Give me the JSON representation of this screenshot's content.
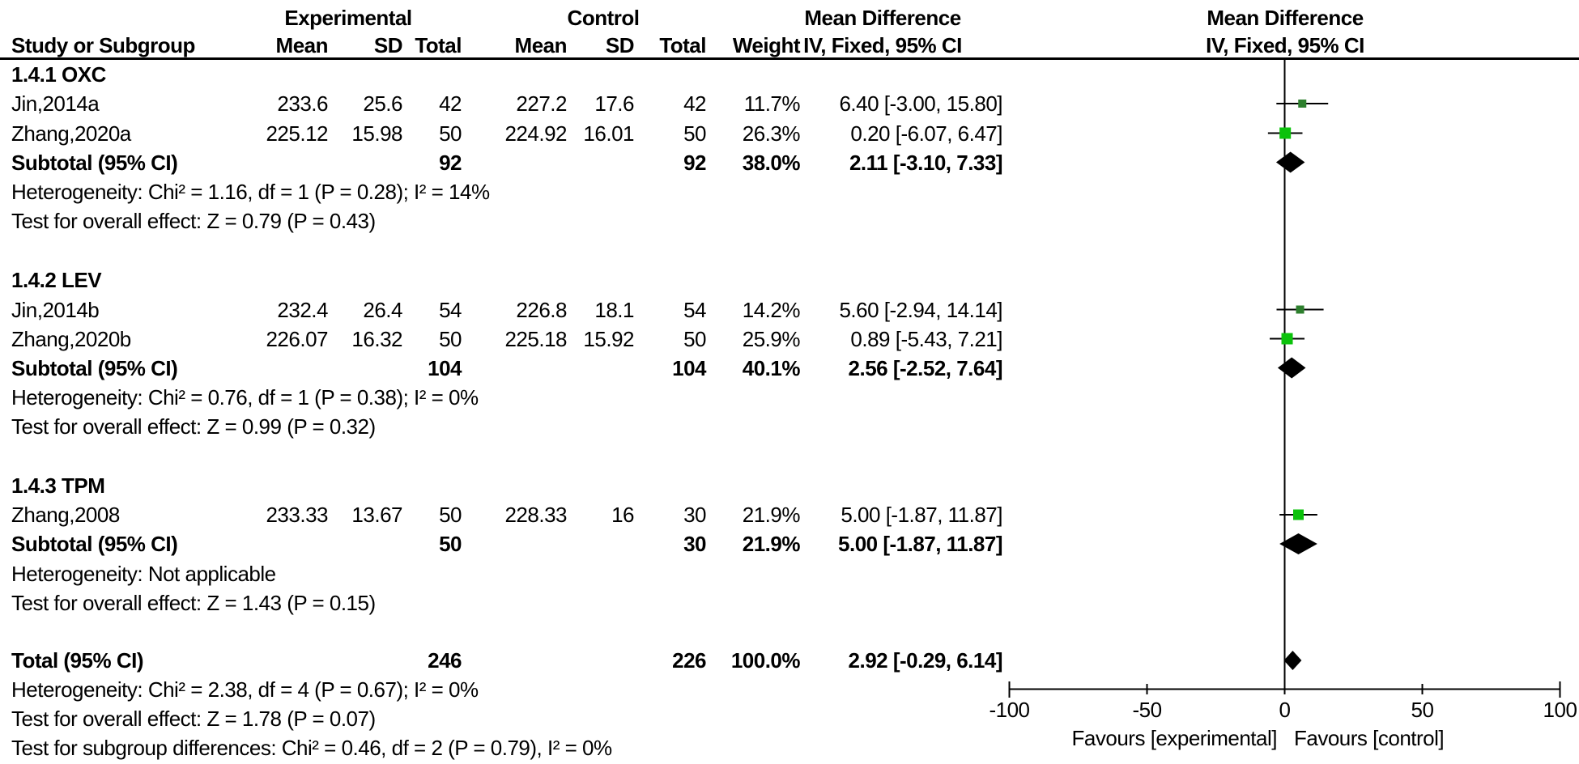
{
  "header": {
    "study": "Study or Subgroup",
    "experimental": "Experimental",
    "control": "Control",
    "mean_difference_left": "Mean Difference",
    "mean_difference_right": "Mean Difference",
    "mean": "Mean",
    "sd": "SD",
    "total": "Total",
    "weight": "Weight",
    "method_left": "IV, Fixed, 95% CI",
    "method_right": "IV, Fixed, 95% CI"
  },
  "colors": {
    "square_small": "#2d7f2d",
    "square_large": "#0bc20b",
    "diamond": "#000000",
    "line": "#000000",
    "text": "#000000",
    "background": "#ffffff"
  },
  "chart_data": {
    "type": "forest",
    "effect_measure": "Mean Difference",
    "method": "IV, Fixed, 95% CI",
    "x_axis": {
      "min": -100,
      "max": 100,
      "ticks": [
        -100,
        -50,
        0,
        50,
        100
      ],
      "tick_labels": [
        "-100",
        "-50",
        "0",
        "50",
        "100"
      ],
      "favours_left": "Favours [experimental]",
      "favours_right": "Favours [control]"
    },
    "sections": [
      {
        "label": "1.4.1 OXC",
        "studies": [
          {
            "study": "Jin,2014a",
            "exp_mean": "233.6",
            "exp_sd": "25.6",
            "exp_total": "42",
            "ctl_mean": "227.2",
            "ctl_sd": "17.6",
            "ctl_total": "42",
            "weight": "11.7%",
            "ci_text": "6.40 [-3.00, 15.80]",
            "md": 6.4,
            "ci_low": -3.0,
            "ci_high": 15.8,
            "marker_size": 10,
            "marker_color": "#2d7f2d"
          },
          {
            "study": "Zhang,2020a",
            "exp_mean": "225.12",
            "exp_sd": "15.98",
            "exp_total": "50",
            "ctl_mean": "224.92",
            "ctl_sd": "16.01",
            "ctl_total": "50",
            "weight": "26.3%",
            "ci_text": "0.20 [-6.07, 6.47]",
            "md": 0.2,
            "ci_low": -6.07,
            "ci_high": 6.47,
            "marker_size": 14,
            "marker_color": "#0bc20b"
          }
        ],
        "subtotal": {
          "label": "Subtotal (95% CI)",
          "exp_total": "92",
          "ctl_total": "92",
          "weight": "38.0%",
          "ci_text": "2.11 [-3.10, 7.33]",
          "md": 2.11,
          "ci_low": -3.1,
          "ci_high": 7.33
        },
        "heterogeneity": "Heterogeneity: Chi² = 1.16, df = 1 (P = 0.28); I² = 14%",
        "overall_effect": "Test for overall effect: Z = 0.79 (P = 0.43)"
      },
      {
        "label": "1.4.2 LEV",
        "studies": [
          {
            "study": "Jin,2014b",
            "exp_mean": "232.4",
            "exp_sd": "26.4",
            "exp_total": "54",
            "ctl_mean": "226.8",
            "ctl_sd": "18.1",
            "ctl_total": "54",
            "weight": "14.2%",
            "ci_text": "5.60 [-2.94, 14.14]",
            "md": 5.6,
            "ci_low": -2.94,
            "ci_high": 14.14,
            "marker_size": 10,
            "marker_color": "#2d7f2d"
          },
          {
            "study": "Zhang,2020b",
            "exp_mean": "226.07",
            "exp_sd": "16.32",
            "exp_total": "50",
            "ctl_mean": "225.18",
            "ctl_sd": "15.92",
            "ctl_total": "50",
            "weight": "25.9%",
            "ci_text": "0.89 [-5.43, 7.21]",
            "md": 0.89,
            "ci_low": -5.43,
            "ci_high": 7.21,
            "marker_size": 14,
            "marker_color": "#0bc20b"
          }
        ],
        "subtotal": {
          "label": "Subtotal (95% CI)",
          "exp_total": "104",
          "ctl_total": "104",
          "weight": "40.1%",
          "ci_text": "2.56 [-2.52, 7.64]",
          "md": 2.56,
          "ci_low": -2.52,
          "ci_high": 7.64
        },
        "heterogeneity": "Heterogeneity: Chi² = 0.76, df = 1 (P = 0.38); I² = 0%",
        "overall_effect": "Test for overall effect: Z = 0.99 (P = 0.32)"
      },
      {
        "label": "1.4.3 TPM",
        "studies": [
          {
            "study": "Zhang,2008",
            "exp_mean": "233.33",
            "exp_sd": "13.67",
            "exp_total": "50",
            "ctl_mean": "228.33",
            "ctl_sd": "16",
            "ctl_total": "30",
            "weight": "21.9%",
            "ci_text": "5.00 [-1.87, 11.87]",
            "md": 5.0,
            "ci_low": -1.87,
            "ci_high": 11.87,
            "marker_size": 13,
            "marker_color": "#0bc20b"
          }
        ],
        "subtotal": {
          "label": "Subtotal (95% CI)",
          "exp_total": "50",
          "ctl_total": "30",
          "weight": "21.9%",
          "ci_text": "5.00 [-1.87, 11.87]",
          "md": 5.0,
          "ci_low": -1.87,
          "ci_high": 11.87
        },
        "heterogeneity": "Heterogeneity: Not applicable",
        "overall_effect": "Test for overall effect: Z = 1.43 (P = 0.15)"
      }
    ],
    "total": {
      "label": "Total (95% CI)",
      "exp_total": "246",
      "ctl_total": "226",
      "weight": "100.0%",
      "ci_text": "2.92 [-0.29, 6.14]",
      "md": 2.92,
      "ci_low": -0.29,
      "ci_high": 6.14,
      "heterogeneity": "Heterogeneity: Chi² = 2.38, df = 4 (P = 0.67); I² = 0%",
      "overall_effect": "Test for overall effect: Z = 1.78 (P = 0.07)",
      "subgroup_differences": "Test for subgroup differences: Chi² = 0.46, df = 2 (P = 0.79), I² = 0%"
    }
  }
}
